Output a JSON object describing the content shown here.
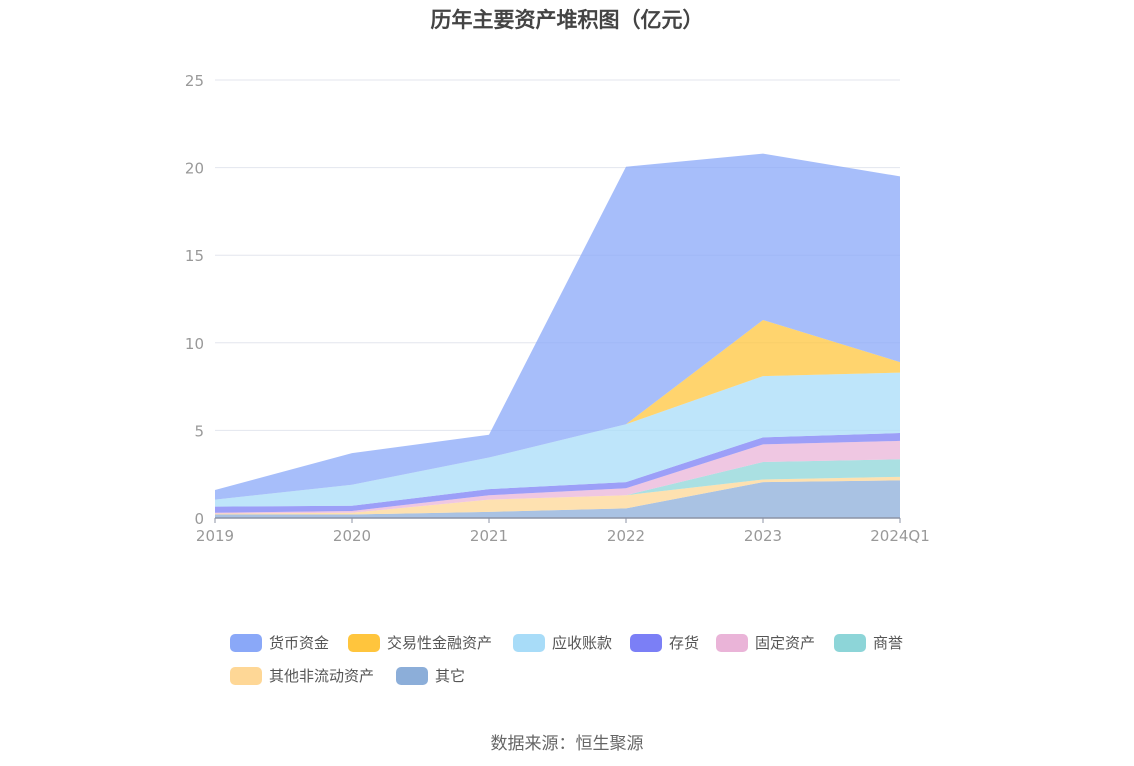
{
  "chart_data": {
    "type": "area",
    "title": "历年主要资产堆积图（亿元）",
    "categories": [
      "2019",
      "2020",
      "2021",
      "2022",
      "2023",
      "2024Q1"
    ],
    "ylim": [
      0,
      25
    ],
    "yticks": [
      "0",
      "5",
      "10",
      "15",
      "20",
      "25"
    ],
    "grid": true,
    "legend_position": "bottom",
    "stacked": true,
    "series": [
      {
        "name": "货币资金",
        "color": "#8aa8f8",
        "values": [
          0.55,
          1.8,
          1.3,
          14.7,
          9.5,
          10.6
        ]
      },
      {
        "name": "交易性金融资产",
        "color": "#ffc53d",
        "values": [
          0.0,
          0.0,
          0.0,
          0.0,
          3.2,
          0.6
        ]
      },
      {
        "name": "应收账款",
        "color": "#a8dcf8",
        "values": [
          0.4,
          1.2,
          1.8,
          3.3,
          3.5,
          3.45
        ]
      },
      {
        "name": "存货",
        "color": "#7b7ff6",
        "values": [
          0.35,
          0.3,
          0.35,
          0.35,
          0.4,
          0.45
        ]
      },
      {
        "name": "固定资产",
        "color": "#eab4d8",
        "values": [
          0.05,
          0.1,
          0.25,
          0.4,
          1.0,
          1.05
        ]
      },
      {
        "name": "商誉",
        "color": "#8dd5d8",
        "values": [
          0.0,
          0.0,
          0.0,
          0.0,
          1.0,
          1.0
        ]
      },
      {
        "name": "其他非流动资产",
        "color": "#fed796",
        "values": [
          0.05,
          0.1,
          0.7,
          0.75,
          0.15,
          0.2
        ]
      },
      {
        "name": "其它",
        "color": "#8caed9",
        "values": [
          0.2,
          0.2,
          0.35,
          0.55,
          2.05,
          2.15
        ]
      }
    ]
  },
  "source_text": "数据来源：恒生聚源"
}
